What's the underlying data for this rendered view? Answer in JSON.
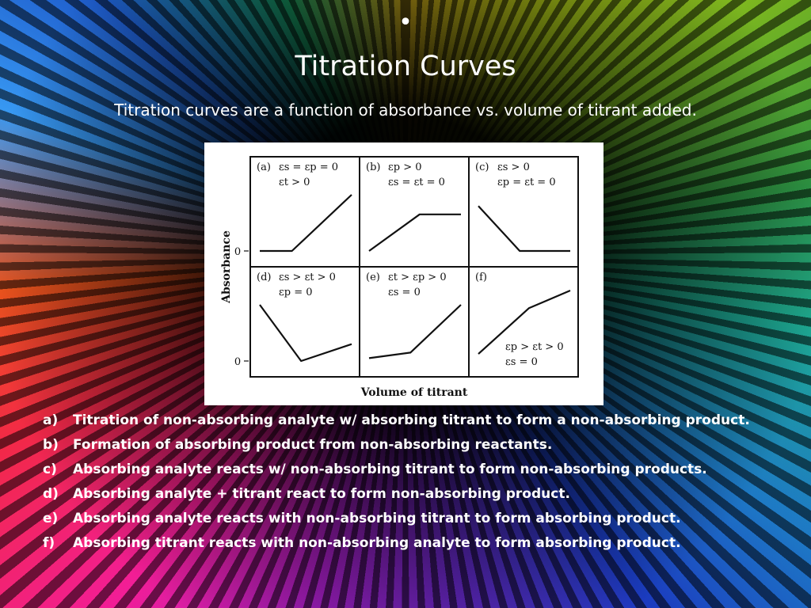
{
  "slide": {
    "bullet": "•",
    "title": "Titration Curves",
    "subtitle": "Titration curves are a function of absorbance vs. volume of titrant added."
  },
  "chart_data": {
    "type": "line",
    "ylabel": "Absorbance",
    "xlabel": "Volume of titrant",
    "ytick_labels": [
      "0",
      "0"
    ],
    "panels": [
      {
        "label": "(a)",
        "annotations": [
          "εs = εp = 0",
          "εt > 0"
        ],
        "series": [
          {
            "x": [
              0,
              0.35,
              1
            ],
            "y": [
              0,
              0,
              1
            ]
          }
        ]
      },
      {
        "label": "(b)",
        "annotations": [
          "εp > 0",
          "εs = εt = 0"
        ],
        "series": [
          {
            "x": [
              0,
              0.55,
              1
            ],
            "y": [
              0,
              0.65,
              0.65
            ]
          }
        ]
      },
      {
        "label": "(c)",
        "annotations": [
          "εs > 0",
          "εp = εt = 0"
        ],
        "series": [
          {
            "x": [
              0,
              0.45,
              1
            ],
            "y": [
              0.8,
              0,
              0
            ]
          }
        ]
      },
      {
        "label": "(d)",
        "annotations": [
          "εs > εt > 0",
          "εp = 0"
        ],
        "series": [
          {
            "x": [
              0,
              0.45,
              1
            ],
            "y": [
              1,
              0,
              0.3
            ]
          }
        ]
      },
      {
        "label": "(e)",
        "annotations": [
          "εt > εp > 0",
          "εs = 0"
        ],
        "series": [
          {
            "x": [
              0,
              0.45,
              1
            ],
            "y": [
              0.05,
              0.15,
              1
            ]
          }
        ]
      },
      {
        "label": "(f)",
        "annotations": [
          "εp > εt > 0",
          "εs = 0"
        ],
        "series": [
          {
            "x": [
              0,
              0.55,
              1
            ],
            "y": [
              0.1,
              0.75,
              1
            ]
          }
        ]
      }
    ]
  },
  "captions": [
    {
      "marker": "a)",
      "text": "Titration of non-absorbing analyte w/ absorbing titrant to form a non-absorbing product."
    },
    {
      "marker": "b)",
      "text": "Formation of absorbing product from non-absorbing reactants."
    },
    {
      "marker": "c)",
      "text": "Absorbing analyte reacts w/ non-absorbing titrant to form non-absorbing products."
    },
    {
      "marker": "d)",
      "text": "Absorbing analyte + titrant react to form non-absorbing product."
    },
    {
      "marker": "e)",
      "text": "Absorbing analyte reacts with non-absorbing titrant to form absorbing product."
    },
    {
      "marker": "f)",
      "text": "Absorbing titrant reacts with non-absorbing analyte to form absorbing product."
    }
  ]
}
